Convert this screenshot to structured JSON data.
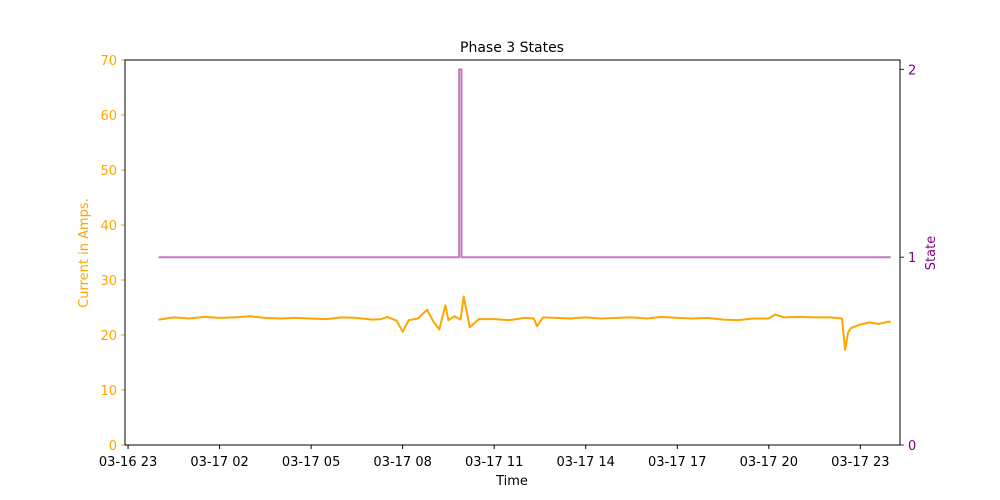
{
  "chart_data": {
    "type": "line",
    "title": "Phase 3 States",
    "xlabel": "Time",
    "x_ticks": [
      "03-16 23",
      "03-17 02",
      "03-17 05",
      "03-17 08",
      "03-17 11",
      "03-17 14",
      "03-17 17",
      "03-17 20",
      "03-17 23"
    ],
    "x_tick_hours": [
      23,
      26,
      29,
      32,
      35,
      38,
      41,
      44,
      47
    ],
    "xlim_hours": [
      22.9,
      48.3
    ],
    "left_axis": {
      "label": "Current in Amps.",
      "color": "#ffa500",
      "ylim": [
        0,
        70
      ],
      "ticks": [
        "0",
        "10",
        "20",
        "30",
        "40",
        "50",
        "60",
        "70"
      ],
      "tick_values": [
        0,
        10,
        20,
        30,
        40,
        50,
        60,
        70
      ]
    },
    "right_axis": {
      "label": "State",
      "color": "#800080",
      "ylim": [
        0,
        2.05
      ],
      "ticks": [
        "0",
        "1",
        "2"
      ],
      "tick_values": [
        0,
        1,
        2
      ]
    },
    "series": [
      {
        "axis": "left",
        "color": "#ffa500",
        "x_hours": [
          24.0,
          24.5,
          25.0,
          25.5,
          26.0,
          26.5,
          27.0,
          27.5,
          28.0,
          28.5,
          29.0,
          29.5,
          30.0,
          30.5,
          31.0,
          31.3,
          31.5,
          31.8,
          32.0,
          32.2,
          32.5,
          32.8,
          33.0,
          33.2,
          33.4,
          33.5,
          33.7,
          33.9,
          34.0,
          34.2,
          34.5,
          35.0,
          35.5,
          36.0,
          36.3,
          36.4,
          36.6,
          37.0,
          37.5,
          38.0,
          38.5,
          39.0,
          39.5,
          40.0,
          40.5,
          41.0,
          41.5,
          42.0,
          42.5,
          43.0,
          43.5,
          44.0,
          44.2,
          44.5,
          45.0,
          45.5,
          46.0,
          46.4,
          46.5,
          46.6,
          46.7,
          47.0,
          47.3,
          47.6,
          47.9,
          48.0
        ],
        "values": [
          22.8,
          23.2,
          23.0,
          23.3,
          23.1,
          23.2,
          23.4,
          23.1,
          23.0,
          23.1,
          23.0,
          22.9,
          23.2,
          23.1,
          22.8,
          22.9,
          23.3,
          22.6,
          20.6,
          22.7,
          23.0,
          24.6,
          22.5,
          21.0,
          25.4,
          22.7,
          23.4,
          22.8,
          27.0,
          21.4,
          22.9,
          22.9,
          22.7,
          23.1,
          23.0,
          21.6,
          23.2,
          23.1,
          23.0,
          23.2,
          23.0,
          23.1,
          23.2,
          23.0,
          23.3,
          23.1,
          23.0,
          23.1,
          22.8,
          22.7,
          23.0,
          23.0,
          23.7,
          23.2,
          23.3,
          23.2,
          23.2,
          23.0,
          17.3,
          20.5,
          21.3,
          21.9,
          22.3,
          22.0,
          22.4,
          22.4
        ]
      },
      {
        "axis": "right",
        "color": "#c27bc2",
        "x_hours": [
          24.0,
          33.85,
          33.85,
          33.93,
          33.93,
          48.0
        ],
        "values": [
          1,
          1,
          2,
          2,
          1,
          1
        ]
      }
    ],
    "grid": false,
    "legend": "none"
  }
}
